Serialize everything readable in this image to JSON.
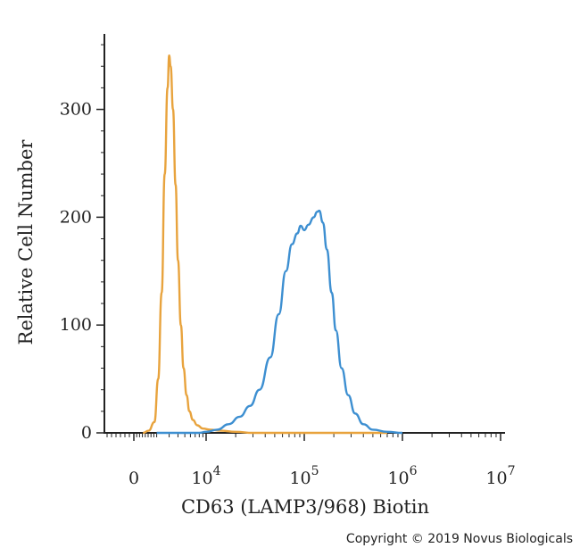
{
  "chart_data": {
    "type": "line",
    "title": "",
    "xlabel": "CD63 (LAMP3/968) Biotin",
    "ylabel": "Relative Cell Number",
    "x_scale": "biexponential",
    "x_ticks": [
      {
        "value": 0,
        "base": "0",
        "exp": ""
      },
      {
        "value": 10000,
        "base": "10",
        "exp": "4"
      },
      {
        "value": 100000,
        "base": "10",
        "exp": "5"
      },
      {
        "value": 1000000,
        "base": "10",
        "exp": "6"
      },
      {
        "value": 10000000,
        "base": "10",
        "exp": "7"
      }
    ],
    "xlim": [
      -1500,
      12000000
    ],
    "ylim": [
      0,
      370
    ],
    "y_ticks": [
      0,
      100,
      200,
      300
    ],
    "grid": false,
    "legend": "none",
    "series": [
      {
        "color": "#e8a33d",
        "points": [
          [
            800,
            0
          ],
          [
            1300,
            2
          ],
          [
            1800,
            10
          ],
          [
            2100,
            50
          ],
          [
            2350,
            130
          ],
          [
            2600,
            240
          ],
          [
            2850,
            320
          ],
          [
            3000,
            350
          ],
          [
            3150,
            340
          ],
          [
            3400,
            300
          ],
          [
            3700,
            230
          ],
          [
            4000,
            160
          ],
          [
            4400,
            100
          ],
          [
            4800,
            60
          ],
          [
            5300,
            35
          ],
          [
            5800,
            20
          ],
          [
            6500,
            12
          ],
          [
            7500,
            7
          ],
          [
            9000,
            4
          ],
          [
            11000,
            3
          ],
          [
            14000,
            2
          ],
          [
            20000,
            1
          ],
          [
            30000,
            0
          ],
          [
            60000,
            0
          ],
          [
            150000,
            0
          ],
          [
            400000,
            0
          ],
          [
            700000,
            0
          ]
        ]
      },
      {
        "color": "#3d8fd1",
        "points": [
          [
            2000,
            0
          ],
          [
            8000,
            0
          ],
          [
            10000,
            1
          ],
          [
            13000,
            3
          ],
          [
            17000,
            8
          ],
          [
            22000,
            15
          ],
          [
            28000,
            25
          ],
          [
            35000,
            40
          ],
          [
            45000,
            70
          ],
          [
            55000,
            110
          ],
          [
            65000,
            150
          ],
          [
            75000,
            175
          ],
          [
            85000,
            185
          ],
          [
            92000,
            192
          ],
          [
            100000,
            188
          ],
          [
            110000,
            193
          ],
          [
            125000,
            200
          ],
          [
            135000,
            205
          ],
          [
            142000,
            206
          ],
          [
            155000,
            195
          ],
          [
            170000,
            170
          ],
          [
            190000,
            130
          ],
          [
            210000,
            95
          ],
          [
            240000,
            60
          ],
          [
            280000,
            35
          ],
          [
            330000,
            18
          ],
          [
            400000,
            8
          ],
          [
            500000,
            3
          ],
          [
            700000,
            1
          ],
          [
            1000000,
            0
          ]
        ]
      }
    ]
  },
  "credit": "Copyright © 2019 Novus Biologicals"
}
